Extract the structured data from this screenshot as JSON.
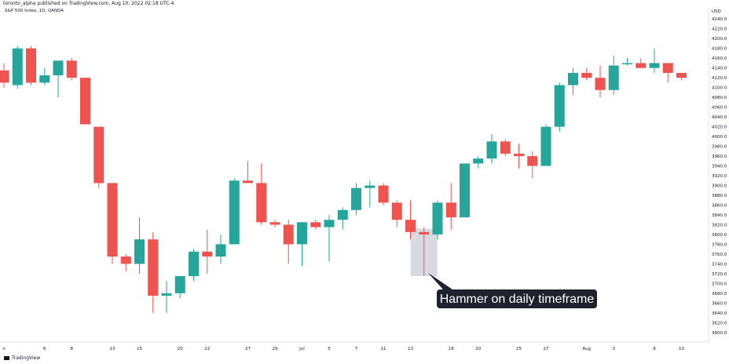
{
  "header": {
    "publish_line": "toronto_alpha published on TradingView.com, Aug 10, 2022 02:18 UTC-4",
    "symbol_line": "S&P 500 Index, 1D, OANDA"
  },
  "footer": {
    "logo_text": "TradingView"
  },
  "chart_data": {
    "type": "candlestick",
    "currency": "USD",
    "colors": {
      "up": "#26a69a",
      "down": "#ef5350",
      "highlight_fill": "#d1d4dc",
      "callout_bg": "#1e222d"
    },
    "ylim": [
      3590,
      4250
    ],
    "y_ticks": [
      3600,
      3620,
      3640,
      3660,
      3680,
      3700,
      3720,
      3740,
      3760,
      3780,
      3800,
      3820,
      3840,
      3860,
      3880,
      3900,
      3920,
      3940,
      3960,
      3980,
      4000,
      4020,
      4040,
      4060,
      4080,
      4100,
      4120,
      4140,
      4160,
      4180,
      4200,
      4220,
      4240
    ],
    "y_tick_labels": [
      "3600.0",
      "3620.0",
      "3640.0",
      "3660.0",
      "3680.0",
      "3700.0",
      "3720.0",
      "3740.0",
      "3760.0",
      "3780.0",
      "3800.0",
      "3820.0",
      "3840.0",
      "3860.0",
      "3880.0",
      "3900.0",
      "3920.0",
      "3940.0",
      "3960.0",
      "3980.0",
      "4000.0",
      "4020.0",
      "4040.0",
      "4060.0",
      "4080.0",
      "4100.0",
      "4120.0",
      "4140.0",
      "4160.0",
      "4180.0",
      "4200.0",
      "4220.0",
      "4240.0"
    ],
    "x_ticks": [
      {
        "index": 0,
        "label": "n"
      },
      {
        "index": 3,
        "label": "6"
      },
      {
        "index": 5,
        "label": "8"
      },
      {
        "index": 8,
        "label": "13"
      },
      {
        "index": 10,
        "label": "15"
      },
      {
        "index": 13,
        "label": "20"
      },
      {
        "index": 15,
        "label": "22"
      },
      {
        "index": 18,
        "label": "27"
      },
      {
        "index": 20,
        "label": "29"
      },
      {
        "index": 22,
        "label": "Jul"
      },
      {
        "index": 24,
        "label": "5"
      },
      {
        "index": 26,
        "label": "7"
      },
      {
        "index": 28,
        "label": "11"
      },
      {
        "index": 30,
        "label": "13"
      },
      {
        "index": 33,
        "label": "18"
      },
      {
        "index": 35,
        "label": "20"
      },
      {
        "index": 38,
        "label": "25"
      },
      {
        "index": 40,
        "label": "27"
      },
      {
        "index": 43,
        "label": "Aug"
      },
      {
        "index": 45,
        "label": "3"
      },
      {
        "index": 48,
        "label": "8"
      },
      {
        "index": 50,
        "label": "10"
      }
    ],
    "candles": [
      {
        "o": 4135,
        "h": 4150,
        "l": 4100,
        "c": 4110
      },
      {
        "o": 4105,
        "h": 4185,
        "l": 4098,
        "c": 4180
      },
      {
        "o": 4180,
        "h": 4185,
        "l": 4105,
        "c": 4110
      },
      {
        "o": 4110,
        "h": 4140,
        "l": 4105,
        "c": 4125
      },
      {
        "o": 4125,
        "h": 4155,
        "l": 4080,
        "c": 4155
      },
      {
        "o": 4155,
        "h": 4160,
        "l": 4115,
        "c": 4120
      },
      {
        "o": 4120,
        "h": 4120,
        "l": 4025,
        "c": 4025
      },
      {
        "o": 4020,
        "h": 4020,
        "l": 3895,
        "c": 3905
      },
      {
        "o": 3905,
        "h": 3905,
        "l": 3740,
        "c": 3755
      },
      {
        "o": 3755,
        "h": 3760,
        "l": 3725,
        "c": 3740
      },
      {
        "o": 3740,
        "h": 3835,
        "l": 3720,
        "c": 3790
      },
      {
        "o": 3790,
        "h": 3805,
        "l": 3640,
        "c": 3675
      },
      {
        "o": 3675,
        "h": 3705,
        "l": 3640,
        "c": 3680
      },
      {
        "o": 3680,
        "h": 3715,
        "l": 3670,
        "c": 3715
      },
      {
        "o": 3715,
        "h": 3770,
        "l": 3705,
        "c": 3765
      },
      {
        "o": 3765,
        "h": 3810,
        "l": 3720,
        "c": 3755
      },
      {
        "o": 3755,
        "h": 3800,
        "l": 3740,
        "c": 3780
      },
      {
        "o": 3780,
        "h": 3915,
        "l": 3780,
        "c": 3910
      },
      {
        "o": 3910,
        "h": 3950,
        "l": 3905,
        "c": 3905
      },
      {
        "o": 3905,
        "h": 3945,
        "l": 3820,
        "c": 3825
      },
      {
        "o": 3825,
        "h": 3830,
        "l": 3815,
        "c": 3820
      },
      {
        "o": 3820,
        "h": 3830,
        "l": 3740,
        "c": 3780
      },
      {
        "o": 3780,
        "h": 3825,
        "l": 3735,
        "c": 3825
      },
      {
        "o": 3825,
        "h": 3830,
        "l": 3810,
        "c": 3815
      },
      {
        "o": 3815,
        "h": 3840,
        "l": 3745,
        "c": 3830
      },
      {
        "o": 3830,
        "h": 3855,
        "l": 3810,
        "c": 3850
      },
      {
        "o": 3850,
        "h": 3905,
        "l": 3840,
        "c": 3895
      },
      {
        "o": 3895,
        "h": 3910,
        "l": 3855,
        "c": 3900
      },
      {
        "o": 3900,
        "h": 3905,
        "l": 3860,
        "c": 3865
      },
      {
        "o": 3865,
        "h": 3870,
        "l": 3815,
        "c": 3830
      },
      {
        "o": 3830,
        "h": 3870,
        "l": 3790,
        "c": 3805
      },
      {
        "o": 3805,
        "h": 3815,
        "l": 3715,
        "c": 3800
      },
      {
        "o": 3800,
        "h": 3870,
        "l": 3790,
        "c": 3865
      },
      {
        "o": 3865,
        "h": 3905,
        "l": 3810,
        "c": 3835
      },
      {
        "o": 3835,
        "h": 3945,
        "l": 3835,
        "c": 3945
      },
      {
        "o": 3945,
        "h": 3960,
        "l": 3935,
        "c": 3955
      },
      {
        "o": 3955,
        "h": 4005,
        "l": 3945,
        "c": 3990
      },
      {
        "o": 3990,
        "h": 3995,
        "l": 3960,
        "c": 3965
      },
      {
        "o": 3965,
        "h": 3985,
        "l": 3935,
        "c": 3960
      },
      {
        "o": 3960,
        "h": 3970,
        "l": 3915,
        "c": 3940
      },
      {
        "o": 3940,
        "h": 4025,
        "l": 3940,
        "c": 4020
      },
      {
        "o": 4020,
        "h": 4110,
        "l": 4010,
        "c": 4105
      },
      {
        "o": 4105,
        "h": 4140,
        "l": 4085,
        "c": 4130
      },
      {
        "o": 4130,
        "h": 4140,
        "l": 4115,
        "c": 4120
      },
      {
        "o": 4120,
        "h": 4145,
        "l": 4080,
        "c": 4095
      },
      {
        "o": 4095,
        "h": 4165,
        "l": 4085,
        "c": 4145
      },
      {
        "o": 4150,
        "h": 4160,
        "l": 4145,
        "c": 4150
      },
      {
        "o": 4150,
        "h": 4160,
        "l": 4140,
        "c": 4140
      },
      {
        "o": 4140,
        "h": 4180,
        "l": 4130,
        "c": 4150
      },
      {
        "o": 4150,
        "h": 4150,
        "l": 4110,
        "c": 4130
      },
      {
        "o": 4130,
        "h": 4130,
        "l": 4115,
        "c": 4120
      }
    ],
    "annotations": [
      {
        "type": "highlight",
        "candle_index": 31,
        "from": 3715,
        "to": 3812
      },
      {
        "type": "callout",
        "candle_index": 31,
        "text": "Hammer on daily timeframe"
      }
    ]
  }
}
